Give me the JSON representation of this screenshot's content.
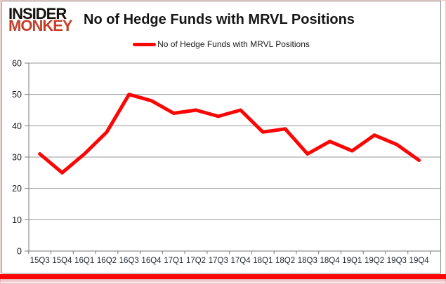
{
  "logo": {
    "line1": "INSIDER",
    "line2": "MONKEY"
  },
  "header": {
    "title": "No of Hedge Funds with MRVL Positions"
  },
  "legend": {
    "label": "No of Hedge Funds with MRVL Positions",
    "swatch_color": "#fb0606"
  },
  "chart_data": {
    "type": "line",
    "title": "No of Hedge Funds with MRVL Positions",
    "categories": [
      "15Q3",
      "15Q4",
      "16Q1",
      "16Q2",
      "16Q3",
      "16Q4",
      "17Q1",
      "17Q2",
      "17Q3",
      "17Q4",
      "18Q1",
      "18Q2",
      "18Q3",
      "18Q4",
      "19Q1",
      "19Q2",
      "19Q3",
      "19Q4"
    ],
    "series": [
      {
        "name": "No of Hedge Funds with MRVL Positions",
        "color": "#fb0606",
        "values": [
          31,
          25,
          31,
          38,
          50,
          48,
          44,
          45,
          43,
          45,
          38,
          39,
          31,
          35,
          32,
          37,
          34,
          29
        ]
      }
    ],
    "xlabel": "",
    "ylabel": "",
    "ylim": [
      0,
      60
    ],
    "yticks": [
      0,
      10,
      20,
      30,
      40,
      50,
      60
    ],
    "grid": true,
    "legend_position": "top-center"
  },
  "colors": {
    "line": "#fb0606",
    "gridline": "#9a9a9a",
    "axis": "#7a7a7a",
    "y_label": "#1a1a1a",
    "x_label": "#1f2733",
    "logo_monkey": "#c5402b",
    "bottom_bar": "#f90606"
  }
}
